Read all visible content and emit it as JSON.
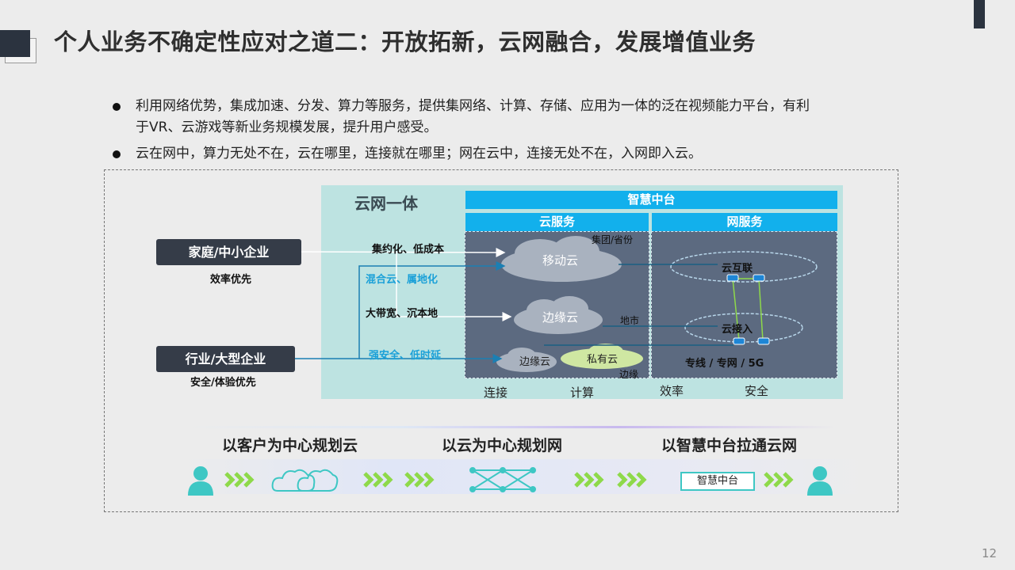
{
  "slide": {
    "title": "个人业务不确定性应对之道二：开放拓新，云网融合，发展增值业务",
    "page_number": "12"
  },
  "bullets": [
    {
      "line1": "利用网络优势，集成加速、分发、算力等服务，提供集网络、计算、存储、应用为一体的泛在视频能力平台，有利",
      "line2": "于VR、云游戏等新业务规模发展，提升用户感受。"
    },
    {
      "line1": "云在网中，算力无处不在，云在哪里，连接就在哪里；网在云中，连接无处不在，入网即入云。"
    }
  ],
  "diagram": {
    "panel_title": "云网一体",
    "hub": "智慧中台",
    "cloud_services": "云服务",
    "net_services": "网服务",
    "mobile_cloud": "移动云",
    "group_prov": "集团/省份",
    "edge_cloud": "边缘云",
    "city": "地市",
    "edge_cloud_small": "边缘云",
    "private_cloud": "私有云",
    "edge": "边缘",
    "cloud_interconnect": "云互联",
    "cloud_access": "云接入",
    "dedicated": "专线 / 专网 / 5G",
    "home_sme": "家庭/中小企业",
    "home_sme_sub": "效率优先",
    "industry": "行业/大型企业",
    "industry_sub": "安全/体验优先",
    "feat1": "集约化、低成本",
    "feat2": "混合云、属地化",
    "feat3": "大带宽、沉本地",
    "feat4": "强安全、低时延",
    "bottom": [
      "连接",
      "计算",
      "效率",
      "安全"
    ]
  },
  "strategy": {
    "s1": "以客户为中心规划云",
    "s2": "以云为中心规划网",
    "s3": "以智慧中台拉通云网",
    "hub_box": "智慧中台"
  },
  "colors": {
    "accent_blue": "#12b0ec",
    "dark": "#2b333f",
    "panel": "#bde3e1",
    "region": "#5c6a80",
    "arrow_green": "#8ed94a",
    "teal": "#3ec7c4"
  },
  "icons": [
    "user-icon",
    "chevrons-icon",
    "cloud-icon",
    "network-icon"
  ]
}
